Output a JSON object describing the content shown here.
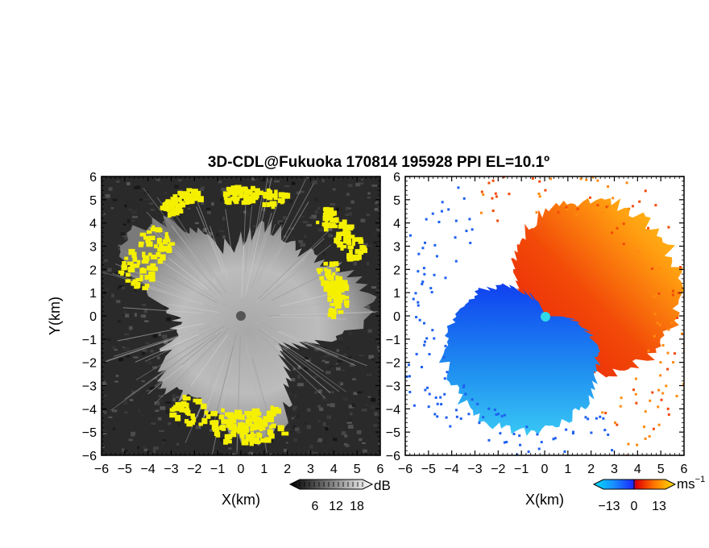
{
  "title": "3D-CDL@Fukuoka 170814 195928 PPI EL=10.1º",
  "chart_data": [
    {
      "type": "heatmap",
      "panel": "reflectivity",
      "xlabel": "X(km)",
      "ylabel": "Y(km)",
      "xlim": [
        -6,
        6
      ],
      "ylim": [
        -6,
        6
      ],
      "xticks": [
        "−6",
        "−5",
        "−4",
        "−3",
        "−2",
        "−1",
        "0",
        "1",
        "2",
        "3",
        "4",
        "5",
        "6"
      ],
      "yticks": [
        "6",
        "5",
        "4",
        "3",
        "2",
        "1",
        "0",
        "−1",
        "−2",
        "−3",
        "−4",
        "−5",
        "−6"
      ],
      "colorbar": {
        "unit": "dB",
        "ticks": [
          "6",
          "12",
          "18"
        ],
        "range": [
          0,
          24
        ],
        "colormap": "grayscale"
      },
      "highlight_color": "#f5f000"
    },
    {
      "type": "heatmap",
      "panel": "doppler_velocity",
      "xlabel": "X(km)",
      "xlim": [
        -6,
        6
      ],
      "ylim": [
        -6,
        6
      ],
      "xticks": [
        "−6",
        "−5",
        "−4",
        "−3",
        "−2",
        "−1",
        "0",
        "1",
        "2",
        "3",
        "4",
        "5",
        "6"
      ],
      "yticks": [
        "6",
        "5",
        "4",
        "3",
        "2",
        "1",
        "0",
        "−1",
        "−2",
        "−3",
        "−4",
        "−5",
        "−6"
      ],
      "colorbar": {
        "unit": "ms",
        "unit_exp": "−1",
        "ticks": [
          "−13",
          "0",
          "13"
        ],
        "range": [
          -20,
          20
        ],
        "colormap": "blue-cyan-red-orange-yellow"
      }
    }
  ]
}
